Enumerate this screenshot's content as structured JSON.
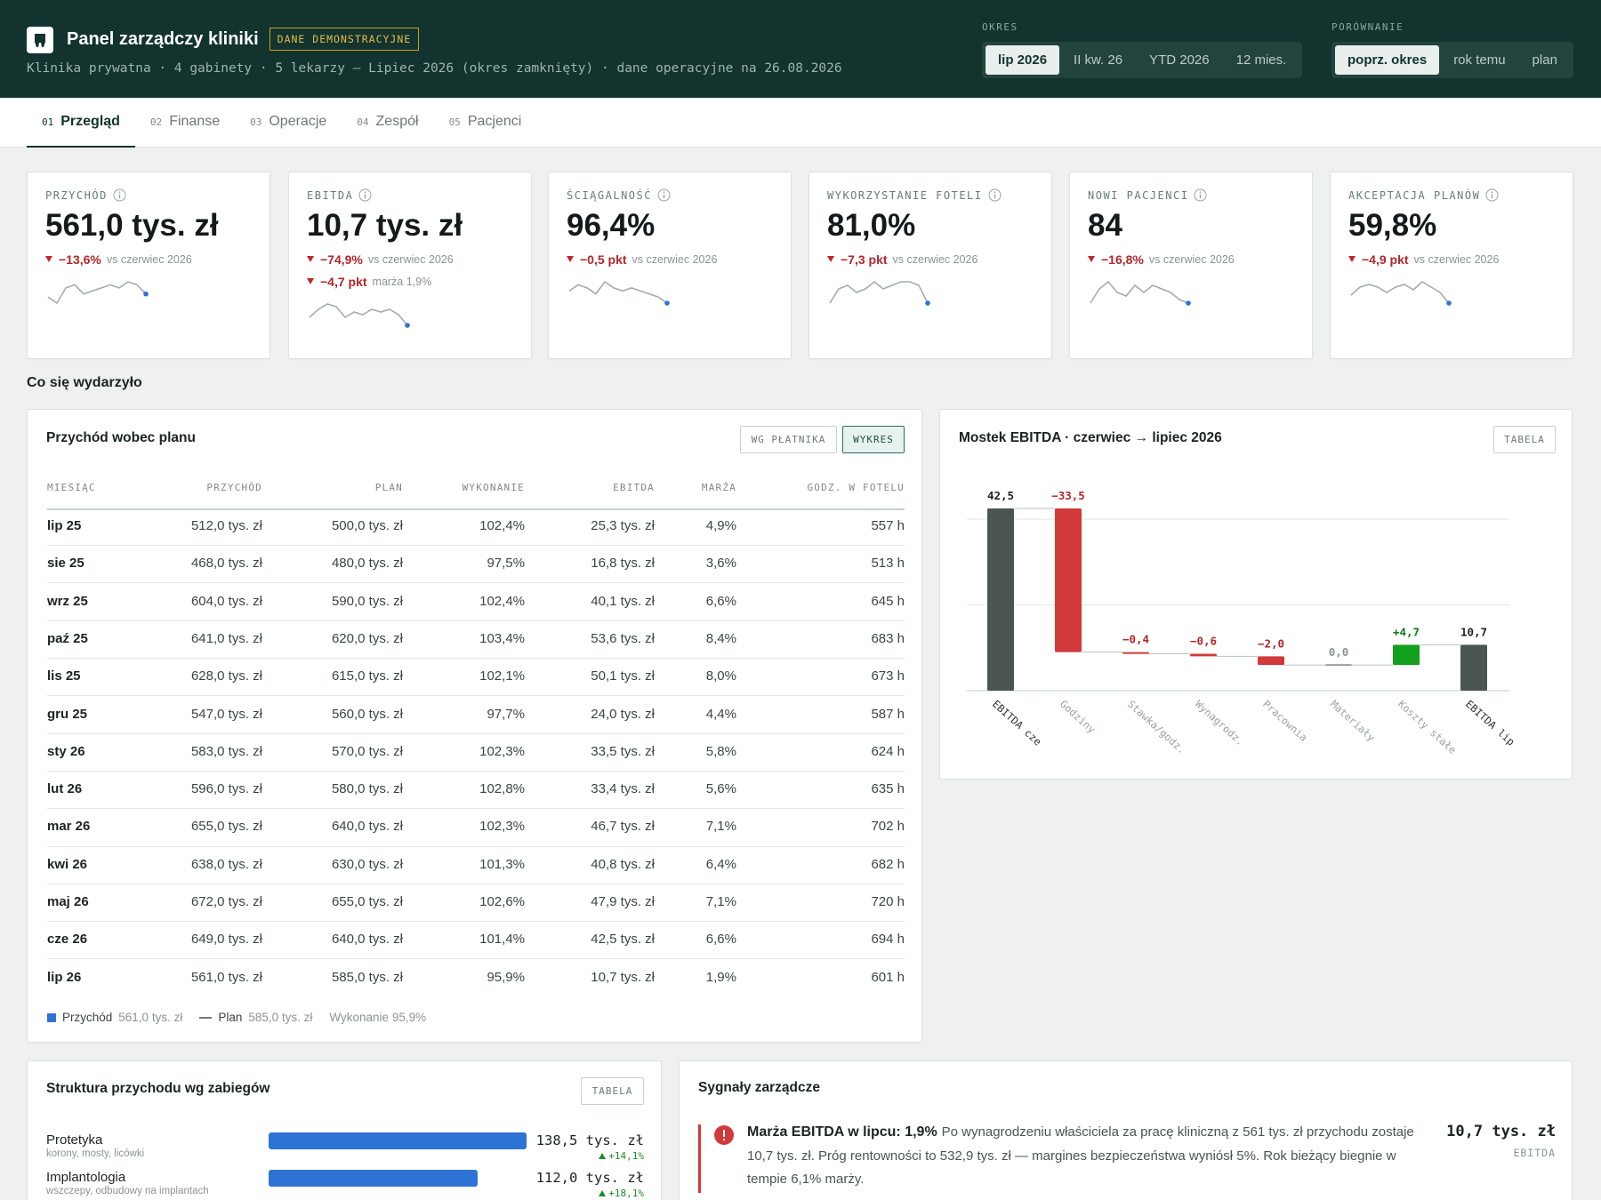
{
  "header": {
    "title": "Panel zarządczy kliniki",
    "badge": "DANE DEMONSTRACYJNE",
    "subtitle": "Klinika prywatna · 4 gabinety · 5 lekarzy — Lipiec 2026 (okres zamknięty) · dane operacyjne na 26.08.2026"
  },
  "period": {
    "label": "OKRES",
    "options": [
      "lip 2026",
      "II kw. 26",
      "YTD 2026",
      "12 mies."
    ],
    "active": 0
  },
  "comparison": {
    "label": "PORÓWNANIE",
    "options": [
      "poprz. okres",
      "rok temu",
      "plan"
    ],
    "active": 0
  },
  "tabs": {
    "items": [
      {
        "number": "01",
        "label": "Przegląd"
      },
      {
        "number": "02",
        "label": "Finanse"
      },
      {
        "number": "03",
        "label": "Operacje"
      },
      {
        "number": "04",
        "label": "Zespół"
      },
      {
        "number": "05",
        "label": "Pacjenci"
      }
    ],
    "active": 0
  },
  "kpis": [
    {
      "label": "PRZYCHÓD",
      "value": "561,0 tys. zł",
      "deltas": [
        {
          "value": "−13,6%",
          "note": "vs czerwiec 2026"
        }
      ],
      "sparkline": [
        4,
        2,
        7,
        8,
        5,
        6,
        7,
        8,
        7,
        9,
        8,
        5
      ]
    },
    {
      "label": "EBITDA",
      "value": "10,7 tys. zł",
      "deltas": [
        {
          "value": "−74,9%",
          "note": "vs czerwiec 2026"
        },
        {
          "value": "−4,7 pkt",
          "note": "marża 1,9%"
        }
      ],
      "sparkline": [
        3,
        6,
        8,
        7,
        3,
        5,
        4,
        6,
        5,
        6,
        4,
        0
      ]
    },
    {
      "label": "ŚCIĄGALNOŚĆ",
      "value": "96,4%",
      "deltas": [
        {
          "value": "−0,5 pkt",
          "note": "vs czerwiec 2026"
        }
      ],
      "sparkline": [
        6,
        8,
        7,
        5,
        9,
        7,
        6,
        7,
        6,
        5,
        4,
        2
      ]
    },
    {
      "label": "WYKORZYSTANIE FOTELI",
      "value": "81,0%",
      "deltas": [
        {
          "value": "−7,3 pkt",
          "note": "vs czerwiec 2026"
        }
      ],
      "sparkline": [
        2,
        6,
        7,
        5,
        6,
        8,
        6,
        7,
        8,
        8,
        7,
        2
      ]
    },
    {
      "label": "NOWI PACJENCI",
      "value": "84",
      "deltas": [
        {
          "value": "−16,8%",
          "note": "vs czerwiec 2026"
        }
      ],
      "sparkline": [
        3,
        7,
        9,
        6,
        5,
        8,
        6,
        8,
        7,
        6,
        4,
        3
      ]
    },
    {
      "label": "AKCEPTACJA PLANÓW",
      "value": "59,8%",
      "deltas": [
        {
          "value": "−4,9 pkt",
          "note": "vs czerwiec 2026"
        }
      ],
      "sparkline": [
        4,
        7,
        8,
        7,
        5,
        7,
        8,
        6,
        9,
        7,
        5,
        1
      ]
    }
  ],
  "section_title": "Co się wydarzyło",
  "revenue_panel": {
    "title": "Przychód wobec planu",
    "buttons": [
      "WG PŁATNIKA",
      "WYKRES"
    ],
    "active_button": 1,
    "table": {
      "columns": [
        "MIESIĄC",
        "PRZYCHÓD",
        "PLAN",
        "WYKONANIE",
        "EBITDA",
        "MARŻA",
        "GODZ. W FOTELU"
      ],
      "rows": [
        [
          "lip 25",
          "512,0 tys. zł",
          "500,0 tys. zł",
          "102,4%",
          "25,3 tys. zł",
          "4,9%",
          "557 h"
        ],
        [
          "sie 25",
          "468,0 tys. zł",
          "480,0 tys. zł",
          "97,5%",
          "16,8 tys. zł",
          "3,6%",
          "513 h"
        ],
        [
          "wrz 25",
          "604,0 tys. zł",
          "590,0 tys. zł",
          "102,4%",
          "40,1 tys. zł",
          "6,6%",
          "645 h"
        ],
        [
          "paź 25",
          "641,0 tys. zł",
          "620,0 tys. zł",
          "103,4%",
          "53,6 tys. zł",
          "8,4%",
          "683 h"
        ],
        [
          "lis 25",
          "628,0 tys. zł",
          "615,0 tys. zł",
          "102,1%",
          "50,1 tys. zł",
          "8,0%",
          "673 h"
        ],
        [
          "gru 25",
          "547,0 tys. zł",
          "560,0 tys. zł",
          "97,7%",
          "24,0 tys. zł",
          "4,4%",
          "587 h"
        ],
        [
          "sty 26",
          "583,0 tys. zł",
          "570,0 tys. zł",
          "102,3%",
          "33,5 tys. zł",
          "5,8%",
          "624 h"
        ],
        [
          "lut 26",
          "596,0 tys. zł",
          "580,0 tys. zł",
          "102,8%",
          "33,4 tys. zł",
          "5,6%",
          "635 h"
        ],
        [
          "mar 26",
          "655,0 tys. zł",
          "640,0 tys. zł",
          "102,3%",
          "46,7 tys. zł",
          "7,1%",
          "702 h"
        ],
        [
          "kwi 26",
          "638,0 tys. zł",
          "630,0 tys. zł",
          "101,3%",
          "40,8 tys. zł",
          "6,4%",
          "682 h"
        ],
        [
          "maj 26",
          "672,0 tys. zł",
          "655,0 tys. zł",
          "102,6%",
          "47,9 tys. zł",
          "7,1%",
          "720 h"
        ],
        [
          "cze 26",
          "649,0 tys. zł",
          "640,0 tys. zł",
          "101,4%",
          "42,5 tys. zł",
          "6,6%",
          "694 h"
        ],
        [
          "lip 26",
          "561,0 tys. zł",
          "585,0 tys. zł",
          "95,9%",
          "10,7 tys. zł",
          "1,9%",
          "601 h"
        ]
      ]
    },
    "legend": {
      "revenue_label": "Przychód",
      "revenue_value": "561,0 tys. zł",
      "plan_label": "Plan",
      "plan_value": "585,0 tys. zł",
      "execution": "Wykonanie 95,9%"
    }
  },
  "ebitda_bridge": {
    "type": "waterfall",
    "title": "Mostek EBITDA · czerwiec → lipiec 2026",
    "button": "TABELA",
    "categories": [
      "EBITDA cze",
      "Godziny",
      "Stawka/godz.",
      "Wynagrodz.",
      "Pracownia",
      "Materiały",
      "Koszty stałe",
      "EBITDA lip"
    ],
    "values": [
      42.5,
      -33.5,
      -0.4,
      -0.6,
      -2.0,
      0.0,
      4.7,
      10.7
    ],
    "value_labels": [
      "42,5",
      "−33,5",
      "−0,4",
      "−0,6",
      "−2,0",
      "0,0",
      "+4,7",
      "10,7"
    ],
    "ylim": [
      0,
      45
    ],
    "yticks": [
      0,
      20,
      40
    ],
    "grid": true,
    "total_color": "#4b5654",
    "decrease_color": "#d2393b",
    "increase_color": "#14a01f",
    "zero_color": "#9aa29f"
  },
  "structure_panel": {
    "title": "Struktura przychodu wg zabiegów",
    "button": "TABELA",
    "color": "#2f72d6",
    "items": [
      {
        "name": "Protetyka",
        "description": "korony, mosty, licówki",
        "value": 138.5,
        "value_label": "138,5 tys. zł",
        "delta": "+14,1%"
      },
      {
        "name": "Implantologia",
        "description": "wszczepy, odbudowy na implantach",
        "value": 112.0,
        "value_label": "112,0 tys. zł",
        "delta": "+18,1%"
      }
    ]
  },
  "signals_panel": {
    "title": "Sygnały zarządcze",
    "items": [
      {
        "heading": "Marża EBITDA w lipcu: 1,9%",
        "text": "Po wynagrodzeniu właściciela za pracę kliniczną z 561 tys. zł przychodu zostaje 10,7 tys. zł. Próg rentowności to 532,9 tys. zł — margines bezpieczeństwa wyniósł 5%. Rok bieżący biegnie w tempie 6,1% marży.",
        "value": "10,7 tys. zł",
        "caption": "EBITDA"
      }
    ]
  }
}
